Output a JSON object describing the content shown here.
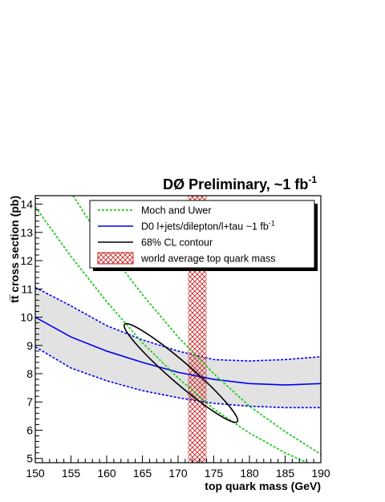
{
  "chart_data": {
    "type": "line",
    "title": "DØ  Preliminary, ~1 fb",
    "title_superscript": "-1",
    "xlabel": "top quark mass (GeV)",
    "ylabel": "tt̅ cross section (pb)",
    "xlim": [
      150,
      190
    ],
    "ylim": [
      4.85,
      14.3
    ],
    "x_ticks": [
      150,
      155,
      160,
      165,
      170,
      175,
      180,
      185,
      190
    ],
    "y_ticks": [
      5,
      6,
      7,
      8,
      9,
      10,
      11,
      12,
      13,
      14
    ],
    "grid": false,
    "legend_position": "top",
    "series": [
      {
        "name": "Moch and Uwer",
        "style": "dashed",
        "color": "#22cc22",
        "band_lower": {
          "x": [
            150,
            155,
            160,
            165,
            170,
            175,
            180,
            185,
            188.1
          ],
          "y": [
            13.9,
            12.15,
            10.55,
            9.1,
            7.85,
            6.75,
            5.9,
            5.2,
            4.85
          ]
        },
        "band_upper": {
          "x": [
            155.3,
            160,
            165,
            170,
            175,
            180,
            185,
            190
          ],
          "y": [
            14.3,
            12.45,
            10.8,
            9.3,
            8.0,
            6.85,
            5.95,
            5.15
          ]
        }
      },
      {
        "name": "D0 l+jets/dilepton/l+tau ~1 fb",
        "name_superscript": "-1",
        "style": "solid",
        "color": "#0000ee",
        "x": [
          150,
          155,
          160,
          165,
          170,
          175,
          180,
          185,
          190
        ],
        "y": [
          10.0,
          9.3,
          8.8,
          8.4,
          8.05,
          7.8,
          7.65,
          7.6,
          7.65
        ],
        "band_upper": [
          11.05,
          10.4,
          9.7,
          9.2,
          8.8,
          8.5,
          8.45,
          8.5,
          8.6
        ],
        "band_lower": [
          8.95,
          8.2,
          7.75,
          7.4,
          7.15,
          6.95,
          6.85,
          6.8,
          6.8
        ]
      },
      {
        "name": "68% CL contour",
        "style": "solid",
        "color": "#000000",
        "ellipse": {
          "center": [
            170.3,
            8.0
          ],
          "tilt_endpoints": [
            [
              162.5,
              9.75
            ],
            [
              178.3,
              6.3
            ]
          ]
        }
      },
      {
        "name": "world average top quark mass",
        "style": "hatched",
        "color": "#cc2222",
        "x_range": [
          171.4,
          174.0
        ]
      }
    ]
  }
}
